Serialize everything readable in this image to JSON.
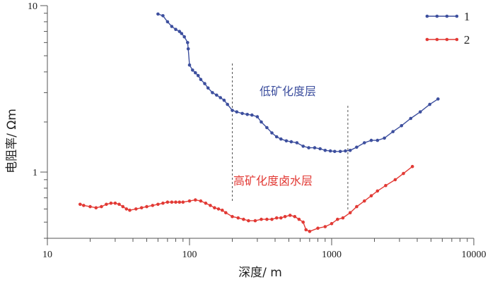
{
  "chart_data": {
    "type": "line",
    "xlabel": "深度/ m",
    "ylabel": "电阻率/ Ωm",
    "x_scale": "log",
    "y_scale": "log",
    "xlim": [
      10,
      10000
    ],
    "ylim": [
      0.4,
      10
    ],
    "x_ticks": [
      {
        "value": 10,
        "label": "10"
      },
      {
        "value": 100,
        "label": "100"
      },
      {
        "value": 1000,
        "label": "1000"
      },
      {
        "value": 10000,
        "label": "10000"
      }
    ],
    "y_ticks": [
      {
        "value": 1,
        "label": "1"
      },
      {
        "value": 10,
        "label": "10"
      }
    ],
    "legend_position": "top-right",
    "grid": false,
    "reference_lines_x": [
      200,
      1300
    ],
    "annotations": [
      {
        "text": "低矿化度层",
        "series": "1"
      },
      {
        "text": "高矿化度卤水层",
        "series": "2"
      }
    ],
    "series": [
      {
        "name": "1",
        "color": "#3d4f9e",
        "x": [
          60,
          65,
          70,
          75,
          80,
          85,
          88,
          92,
          97,
          98,
          100,
          105,
          110,
          115,
          120,
          128,
          135,
          145,
          155,
          165,
          175,
          185,
          200,
          215,
          235,
          255,
          275,
          300,
          320,
          350,
          380,
          410,
          440,
          480,
          520,
          570,
          630,
          690,
          760,
          830,
          900,
          980,
          1050,
          1150,
          1250,
          1350,
          1500,
          1700,
          1900,
          2100,
          2350,
          2700,
          3100,
          3600,
          4200,
          4900,
          5600
        ],
        "y": [
          8.9,
          8.7,
          8.0,
          7.5,
          7.2,
          7.0,
          6.8,
          6.5,
          6.0,
          5.5,
          4.4,
          4.1,
          3.95,
          3.8,
          3.6,
          3.4,
          3.2,
          3.0,
          2.9,
          2.8,
          2.7,
          2.55,
          2.35,
          2.3,
          2.25,
          2.22,
          2.2,
          2.15,
          2.0,
          1.85,
          1.72,
          1.63,
          1.58,
          1.54,
          1.52,
          1.5,
          1.43,
          1.4,
          1.4,
          1.38,
          1.35,
          1.34,
          1.33,
          1.33,
          1.34,
          1.35,
          1.41,
          1.5,
          1.55,
          1.55,
          1.6,
          1.75,
          1.9,
          2.1,
          2.3,
          2.55,
          2.75
        ]
      },
      {
        "name": "2",
        "color": "#e23a35",
        "x": [
          17,
          18,
          20,
          22,
          24,
          26,
          28,
          30,
          32,
          34,
          36,
          38,
          42,
          46,
          50,
          55,
          60,
          65,
          70,
          75,
          80,
          85,
          90,
          100,
          110,
          120,
          130,
          140,
          150,
          160,
          170,
          180,
          200,
          220,
          240,
          260,
          290,
          320,
          350,
          380,
          410,
          440,
          470,
          510,
          550,
          590,
          630,
          660,
          700,
          800,
          900,
          1000,
          1100,
          1200,
          1350,
          1500,
          1700,
          1900,
          2100,
          2400,
          2800,
          3200,
          3700
        ],
        "y": [
          0.64,
          0.63,
          0.62,
          0.61,
          0.62,
          0.64,
          0.65,
          0.65,
          0.64,
          0.62,
          0.6,
          0.59,
          0.6,
          0.61,
          0.62,
          0.63,
          0.64,
          0.65,
          0.66,
          0.66,
          0.66,
          0.66,
          0.66,
          0.67,
          0.68,
          0.67,
          0.65,
          0.63,
          0.61,
          0.6,
          0.59,
          0.57,
          0.54,
          0.53,
          0.52,
          0.51,
          0.51,
          0.52,
          0.52,
          0.52,
          0.53,
          0.53,
          0.54,
          0.55,
          0.54,
          0.52,
          0.5,
          0.45,
          0.44,
          0.46,
          0.47,
          0.49,
          0.52,
          0.53,
          0.57,
          0.62,
          0.67,
          0.72,
          0.77,
          0.83,
          0.9,
          0.98,
          1.08
        ]
      }
    ]
  }
}
